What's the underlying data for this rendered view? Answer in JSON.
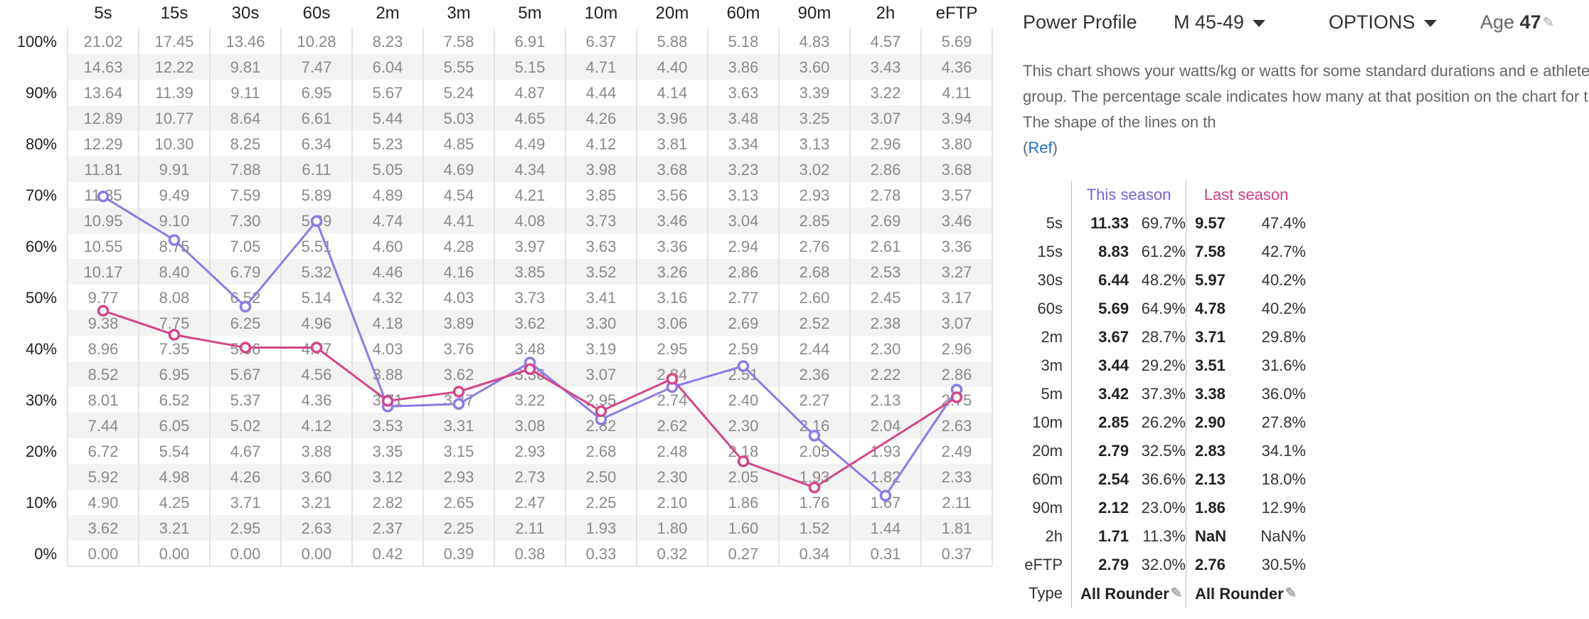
{
  "chart_data": {
    "type": "line",
    "columns": [
      "5s",
      "15s",
      "30s",
      "60s",
      "2m",
      "3m",
      "5m",
      "10m",
      "20m",
      "60m",
      "90m",
      "2h",
      "eFTP"
    ],
    "y_ticks": [
      "100%",
      "90%",
      "80%",
      "70%",
      "60%",
      "50%",
      "40%",
      "30%",
      "20%",
      "10%",
      "0%"
    ],
    "grid_rows": [
      [
        "21.02",
        "17.45",
        "13.46",
        "10.28",
        "8.23",
        "7.58",
        "6.91",
        "6.37",
        "5.88",
        "5.18",
        "4.83",
        "4.57",
        "5.69"
      ],
      [
        "14.63",
        "12.22",
        "9.81",
        "7.47",
        "6.04",
        "5.55",
        "5.15",
        "4.71",
        "4.40",
        "3.86",
        "3.60",
        "3.43",
        "4.36"
      ],
      [
        "13.64",
        "11.39",
        "9.11",
        "6.95",
        "5.67",
        "5.24",
        "4.87",
        "4.44",
        "4.14",
        "3.63",
        "3.39",
        "3.22",
        "4.11"
      ],
      [
        "12.89",
        "10.77",
        "8.64",
        "6.61",
        "5.44",
        "5.03",
        "4.65",
        "4.26",
        "3.96",
        "3.48",
        "3.25",
        "3.07",
        "3.94"
      ],
      [
        "12.29",
        "10.30",
        "8.25",
        "6.34",
        "5.23",
        "4.85",
        "4.49",
        "4.12",
        "3.81",
        "3.34",
        "3.13",
        "2.96",
        "3.80"
      ],
      [
        "11.81",
        "9.91",
        "7.88",
        "6.11",
        "5.05",
        "4.69",
        "4.34",
        "3.98",
        "3.68",
        "3.23",
        "3.02",
        "2.86",
        "3.68"
      ],
      [
        "11.35",
        "9.49",
        "7.59",
        "5.89",
        "4.89",
        "4.54",
        "4.21",
        "3.85",
        "3.56",
        "3.13",
        "2.93",
        "2.78",
        "3.57"
      ],
      [
        "10.95",
        "9.10",
        "7.30",
        "5.69",
        "4.74",
        "4.41",
        "4.08",
        "3.73",
        "3.46",
        "3.04",
        "2.85",
        "2.69",
        "3.46"
      ],
      [
        "10.55",
        "8.75",
        "7.05",
        "5.51",
        "4.60",
        "4.28",
        "3.97",
        "3.63",
        "3.36",
        "2.94",
        "2.76",
        "2.61",
        "3.36"
      ],
      [
        "10.17",
        "8.40",
        "6.79",
        "5.32",
        "4.46",
        "4.16",
        "3.85",
        "3.52",
        "3.26",
        "2.86",
        "2.68",
        "2.53",
        "3.27"
      ],
      [
        "9.77",
        "8.08",
        "6.52",
        "5.14",
        "4.32",
        "4.03",
        "3.73",
        "3.41",
        "3.16",
        "2.77",
        "2.60",
        "2.45",
        "3.17"
      ],
      [
        "9.38",
        "7.75",
        "6.25",
        "4.96",
        "4.18",
        "3.89",
        "3.62",
        "3.30",
        "3.06",
        "2.69",
        "2.52",
        "2.38",
        "3.07"
      ],
      [
        "8.96",
        "7.35",
        "5.96",
        "4.77",
        "4.03",
        "3.76",
        "3.48",
        "3.19",
        "2.95",
        "2.59",
        "2.44",
        "2.30",
        "2.96"
      ],
      [
        "8.52",
        "6.95",
        "5.67",
        "4.56",
        "3.88",
        "3.62",
        "3.36",
        "3.07",
        "2.84",
        "2.51",
        "2.36",
        "2.22",
        "2.86"
      ],
      [
        "8.01",
        "6.52",
        "5.37",
        "4.36",
        "3.71",
        "3.47",
        "3.22",
        "2.95",
        "2.74",
        "2.40",
        "2.27",
        "2.13",
        "2.75"
      ],
      [
        "7.44",
        "6.05",
        "5.02",
        "4.12",
        "3.53",
        "3.31",
        "3.08",
        "2.82",
        "2.62",
        "2.30",
        "2.16",
        "2.04",
        "2.63"
      ],
      [
        "6.72",
        "5.54",
        "4.67",
        "3.88",
        "3.35",
        "3.15",
        "2.93",
        "2.68",
        "2.48",
        "2.18",
        "2.05",
        "1.93",
        "2.49"
      ],
      [
        "5.92",
        "4.98",
        "4.26",
        "3.60",
        "3.12",
        "2.93",
        "2.73",
        "2.50",
        "2.30",
        "2.05",
        "1.93",
        "1.82",
        "2.33"
      ],
      [
        "4.90",
        "4.25",
        "3.71",
        "3.21",
        "2.82",
        "2.65",
        "2.47",
        "2.25",
        "2.10",
        "1.86",
        "1.76",
        "1.67",
        "2.11"
      ],
      [
        "3.62",
        "3.21",
        "2.95",
        "2.63",
        "2.37",
        "2.25",
        "2.11",
        "1.93",
        "1.80",
        "1.60",
        "1.52",
        "1.44",
        "1.81"
      ],
      [
        "0.00",
        "0.00",
        "0.00",
        "0.00",
        "0.42",
        "0.39",
        "0.38",
        "0.33",
        "0.32",
        "0.27",
        "0.34",
        "0.31",
        "0.37"
      ]
    ],
    "ylim": [
      0,
      100
    ],
    "series": [
      {
        "name": "This season",
        "color": "#8a7ce8",
        "values": [
          69.7,
          61.2,
          48.2,
          64.9,
          28.7,
          29.2,
          37.3,
          26.2,
          32.5,
          36.6,
          23.0,
          11.3,
          32.0
        ]
      },
      {
        "name": "Last season",
        "color": "#d2478a",
        "values": [
          47.4,
          42.7,
          40.2,
          40.2,
          29.8,
          31.6,
          36.0,
          27.8,
          34.1,
          18.0,
          12.9,
          null,
          30.5
        ]
      }
    ]
  },
  "panel": {
    "title": "Power Profile",
    "category": "M 45-49",
    "options": "OPTIONS",
    "age_label": "Age",
    "age_value": "47",
    "description": "This chart shows your watts/kg or watts for some standard durations and e athletes in the selected group. The percentage scale indicates how many at that position on the chart for the given duration. The shape of the lines on th",
    "ref_link": "Ref",
    "this_season_header": "This season",
    "last_season_header": "Last season",
    "rows": [
      {
        "dur": "5s",
        "this_val": "11.33",
        "this_pct": "69.7%",
        "last_val": "9.57",
        "last_pct": "47.4%"
      },
      {
        "dur": "15s",
        "this_val": "8.83",
        "this_pct": "61.2%",
        "last_val": "7.58",
        "last_pct": "42.7%"
      },
      {
        "dur": "30s",
        "this_val": "6.44",
        "this_pct": "48.2%",
        "last_val": "5.97",
        "last_pct": "40.2%"
      },
      {
        "dur": "60s",
        "this_val": "5.69",
        "this_pct": "64.9%",
        "last_val": "4.78",
        "last_pct": "40.2%"
      },
      {
        "dur": "2m",
        "this_val": "3.67",
        "this_pct": "28.7%",
        "last_val": "3.71",
        "last_pct": "29.8%"
      },
      {
        "dur": "3m",
        "this_val": "3.44",
        "this_pct": "29.2%",
        "last_val": "3.51",
        "last_pct": "31.6%"
      },
      {
        "dur": "5m",
        "this_val": "3.42",
        "this_pct": "37.3%",
        "last_val": "3.38",
        "last_pct": "36.0%"
      },
      {
        "dur": "10m",
        "this_val": "2.85",
        "this_pct": "26.2%",
        "last_val": "2.90",
        "last_pct": "27.8%"
      },
      {
        "dur": "20m",
        "this_val": "2.79",
        "this_pct": "32.5%",
        "last_val": "2.83",
        "last_pct": "34.1%"
      },
      {
        "dur": "60m",
        "this_val": "2.54",
        "this_pct": "36.6%",
        "last_val": "2.13",
        "last_pct": "18.0%"
      },
      {
        "dur": "90m",
        "this_val": "2.12",
        "this_pct": "23.0%",
        "last_val": "1.86",
        "last_pct": "12.9%"
      },
      {
        "dur": "2h",
        "this_val": "1.71",
        "this_pct": "11.3%",
        "last_val": "NaN",
        "last_pct": "NaN%"
      },
      {
        "dur": "eFTP",
        "this_val": "2.79",
        "this_pct": "32.0%",
        "last_val": "2.76",
        "last_pct": "30.5%"
      }
    ],
    "type_label": "Type",
    "this_type": "All Rounder",
    "last_type": "All Rounder"
  }
}
